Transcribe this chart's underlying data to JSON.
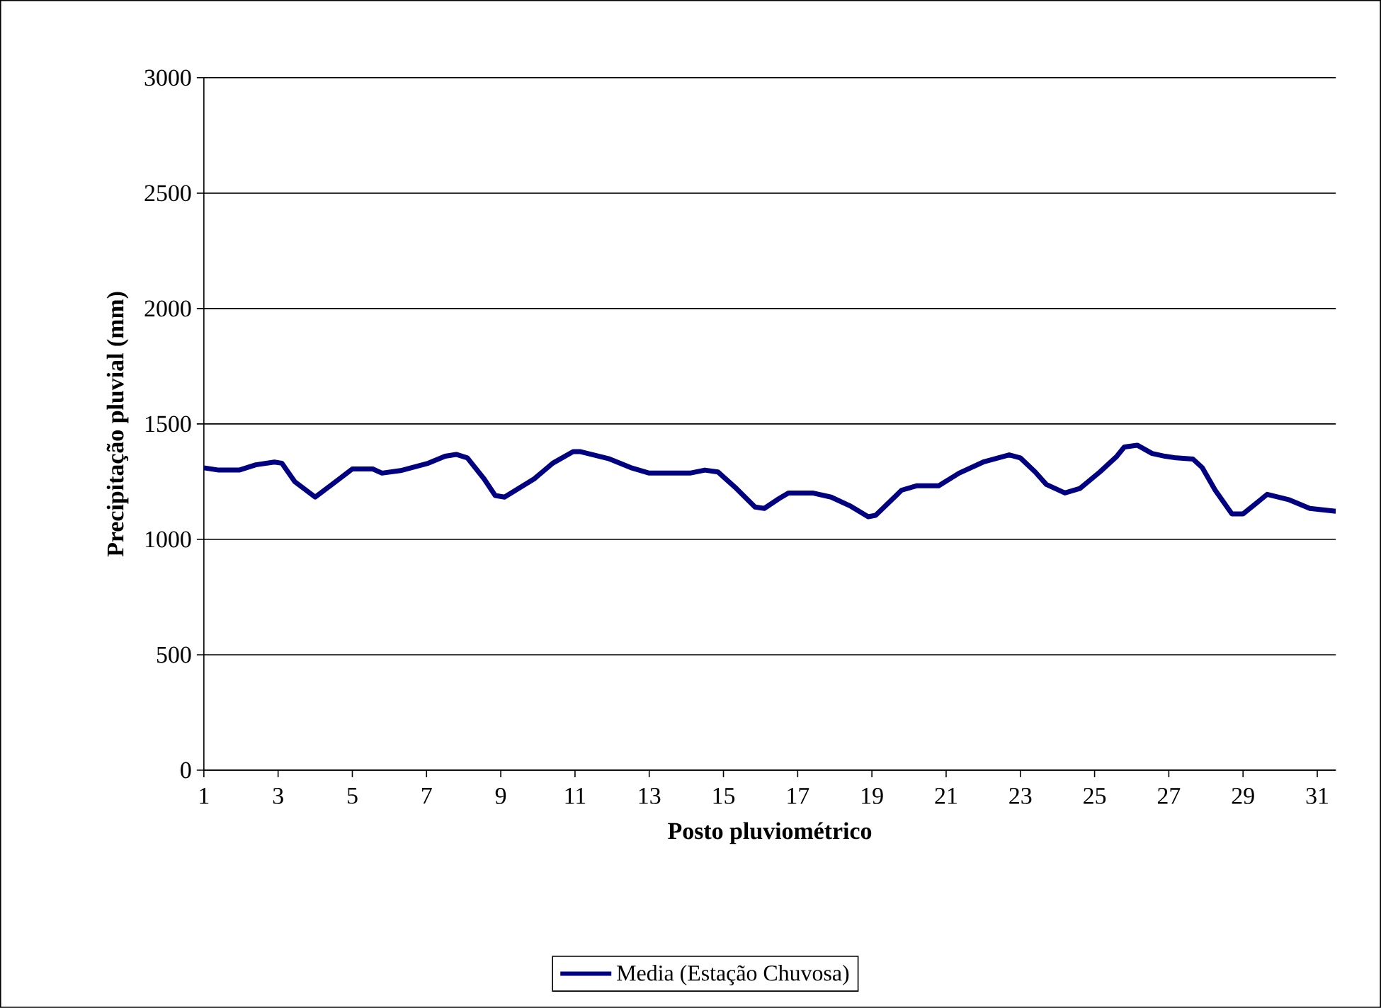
{
  "chart_data": {
    "type": "line",
    "xlabel": "Posto pluviométrico",
    "ylabel": "Precipitação pluvial (mm)",
    "xlim": [
      1,
      31.5
    ],
    "xticks": [
      1,
      3,
      5,
      7,
      9,
      11,
      13,
      15,
      17,
      19,
      21,
      23,
      25,
      27,
      29,
      31
    ],
    "ylim": [
      0,
      3000
    ],
    "yticks": [
      0,
      500,
      1000,
      1500,
      2000,
      2500,
      3000
    ],
    "grid": "y",
    "legend": "bottom",
    "marker": "none",
    "line_style": "solid",
    "series": [
      {
        "name": "Media (Estação Chuvosa)",
        "color": "#000080",
        "x": [
          1,
          1.4,
          1.95,
          2.4,
          2.9,
          3.1,
          3.45,
          4.0,
          4.55,
          5.0,
          5.55,
          5.8,
          6.3,
          7.05,
          7.5,
          7.8,
          8.1,
          8.55,
          8.85,
          9.1,
          9.9,
          10.4,
          10.95,
          11.15,
          11.9,
          12.5,
          13.0,
          14.1,
          14.5,
          14.85,
          15.35,
          15.85,
          16.1,
          16.5,
          16.75,
          17.4,
          17.9,
          18.4,
          18.9,
          19.1,
          19.8,
          20.2,
          20.8,
          21.35,
          22.0,
          22.7,
          23.0,
          23.4,
          23.7,
          24.2,
          24.6,
          25.15,
          25.6,
          25.8,
          26.15,
          26.55,
          26.9,
          27.2,
          27.65,
          27.9,
          28.25,
          28.7,
          29.0,
          29.65,
          30.25,
          30.8,
          31.5
        ],
        "values": [
          1310,
          1300,
          1300,
          1323,
          1335,
          1330,
          1250,
          1183,
          1250,
          1305,
          1305,
          1287,
          1298,
          1330,
          1360,
          1368,
          1353,
          1262,
          1190,
          1183,
          1262,
          1330,
          1380,
          1380,
          1350,
          1311,
          1287,
          1287,
          1300,
          1292,
          1220,
          1140,
          1134,
          1177,
          1201,
          1201,
          1183,
          1146,
          1098,
          1104,
          1213,
          1232,
          1232,
          1287,
          1335,
          1366,
          1353,
          1292,
          1238,
          1201,
          1220,
          1293,
          1360,
          1400,
          1408,
          1372,
          1360,
          1353,
          1348,
          1311,
          1213,
          1110,
          1110,
          1195,
          1171,
          1134,
          1122
        ]
      }
    ]
  }
}
